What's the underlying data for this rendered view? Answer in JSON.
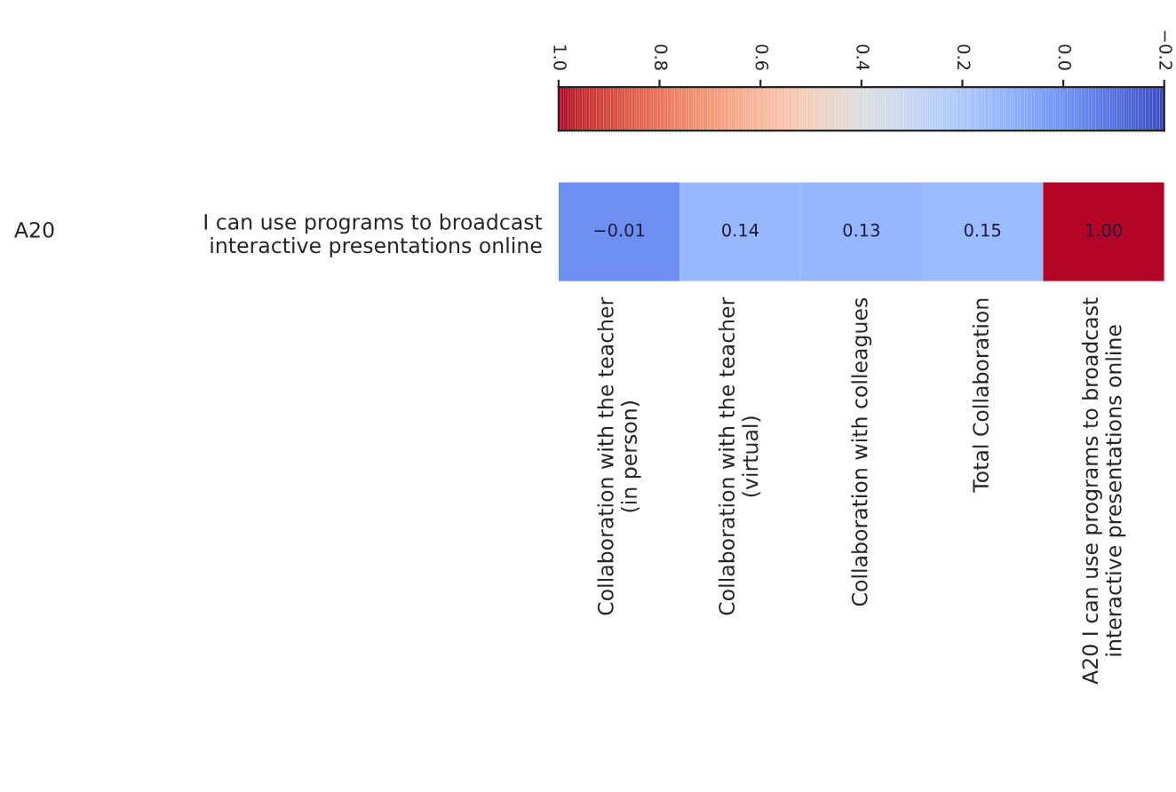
{
  "chart_data": {
    "type": "heatmap",
    "categories": [
      "Collaboration with the teacher\n(in person)",
      "Collaboration with the teacher\n(virtual)",
      "Collaboration with colleagues",
      "Total Collaboration",
      "A20 I can use programs to broadcast\ninteractive presentations online"
    ],
    "y_categories": [
      "I can use programs to broadcast\ninteractive presentations online"
    ],
    "y2_categories": [
      "A20"
    ],
    "cells": [
      [
        -0.01,
        0.14,
        0.13,
        0.15,
        1.0
      ]
    ],
    "cell_labels": [
      [
        "−0.01",
        "0.14",
        "0.13",
        "0.15",
        "1.00"
      ]
    ],
    "clim": [
      -0.2,
      1.0
    ],
    "cticks": [
      {
        "value": 1,
        "label": "1.0"
      },
      0.8,
      0.6,
      0.4,
      0.2,
      {
        "value": 0,
        "label": "0.0"
      },
      {
        "value": -0.2,
        "label": "−0.2"
      }
    ]
  }
}
